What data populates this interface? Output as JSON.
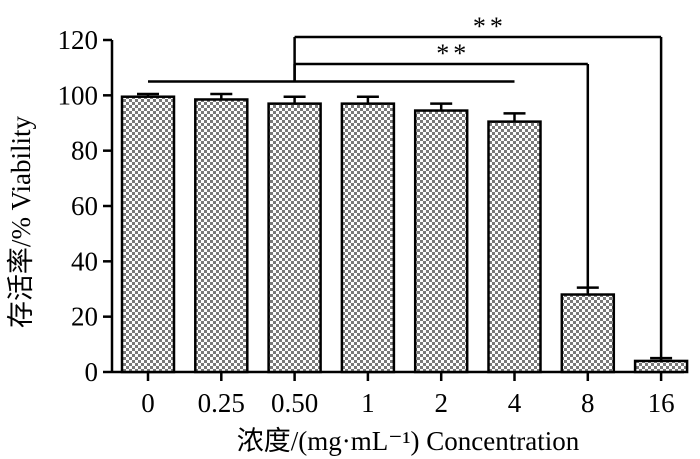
{
  "chart_data": {
    "type": "bar",
    "categories": [
      "0",
      "0.25",
      "0.50",
      "1",
      "2",
      "4",
      "8",
      "16"
    ],
    "values": [
      99.5,
      98.5,
      97,
      97,
      94.5,
      90.5,
      28,
      4
    ],
    "errors": [
      1,
      2,
      2.5,
      2.5,
      2.5,
      3,
      2.5,
      1
    ],
    "ylim": [
      0,
      120
    ],
    "yticks": [
      0,
      20,
      40,
      60,
      80,
      100,
      120
    ],
    "xlabel": "浓度/(mg·mL⁻¹)  Concentration",
    "ylabel": "存活率/%  Viability",
    "significance": [
      {
        "label": "**",
        "from_category": "0.50",
        "to_category": "16"
      },
      {
        "label": "**",
        "from_category": "0.50",
        "to_category": "8"
      }
    ],
    "reference_line": {
      "from_category": "0",
      "to_category": "4",
      "value": 105
    }
  }
}
